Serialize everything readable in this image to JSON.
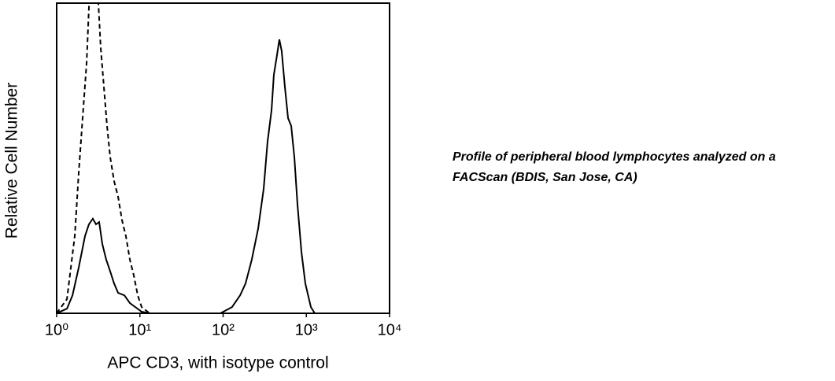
{
  "chart_data": {
    "type": "line",
    "xlabel": "APC CD3, with isotype control",
    "ylabel": "Relative Cell Number",
    "caption": [
      "Profile of peripheral blood lymphocytes analyzed on a",
      "FACScan (BDIS, San Jose, CA)"
    ],
    "xscale": "log",
    "xlim": [
      1,
      10000
    ],
    "xticks": [
      {
        "value": 1,
        "label": "10⁰"
      },
      {
        "value": 10,
        "label": "10¹"
      },
      {
        "value": 100,
        "label": "10²"
      },
      {
        "value": 1000,
        "label": "10³"
      },
      {
        "value": 10000,
        "label": "10⁴"
      }
    ],
    "ylim": [
      0,
      100
    ],
    "grid": false,
    "series": [
      {
        "color": "#000000",
        "dash": false,
        "x": [
          1,
          1.33,
          1.55,
          1.84,
          2.19,
          2.44,
          2.72,
          2.97,
          3.24,
          3.54,
          3.94,
          4.4,
          4.9,
          5.47,
          6.51,
          7.58,
          8.82,
          10.5,
          13.1,
          92.7,
          128,
          160,
          186,
          221,
          264,
          307,
          342,
          382,
          407,
          444,
          474,
          506,
          552,
          603,
          658,
          718,
          783,
          873,
          973,
          1134,
          1264
        ],
        "values": [
          0,
          1.5,
          5.8,
          14.7,
          24.9,
          28.7,
          30.5,
          28.7,
          29.4,
          22.3,
          17.3,
          13.5,
          9.6,
          6.6,
          5.8,
          3.3,
          2,
          0.5,
          0,
          0,
          2,
          5.8,
          9.6,
          17.3,
          27.4,
          40.1,
          55.3,
          65.5,
          76.9,
          83.2,
          88.3,
          84.5,
          73.1,
          62.9,
          60.4,
          50.3,
          35,
          19.8,
          9.6,
          2,
          0
        ]
      },
      {
        "color": "#000000",
        "dash": true,
        "x": [
          1,
          1.33,
          1.48,
          1.65,
          1.84,
          2.05,
          2.29,
          2.44,
          2.55,
          2.84,
          3.17,
          3.38,
          3.69,
          4.03,
          4.4,
          4.9,
          5.47,
          6.1,
          6.79,
          7.58,
          8.45,
          9.42,
          10.5,
          13.1
        ],
        "values": [
          0,
          4.6,
          14.7,
          24.9,
          45.2,
          62.9,
          80.7,
          98.5,
          110,
          110,
          100,
          85.8,
          73.1,
          60.4,
          50.3,
          42.6,
          37.6,
          30,
          24.9,
          17.3,
          12.2,
          5.8,
          2,
          0
        ]
      }
    ]
  }
}
